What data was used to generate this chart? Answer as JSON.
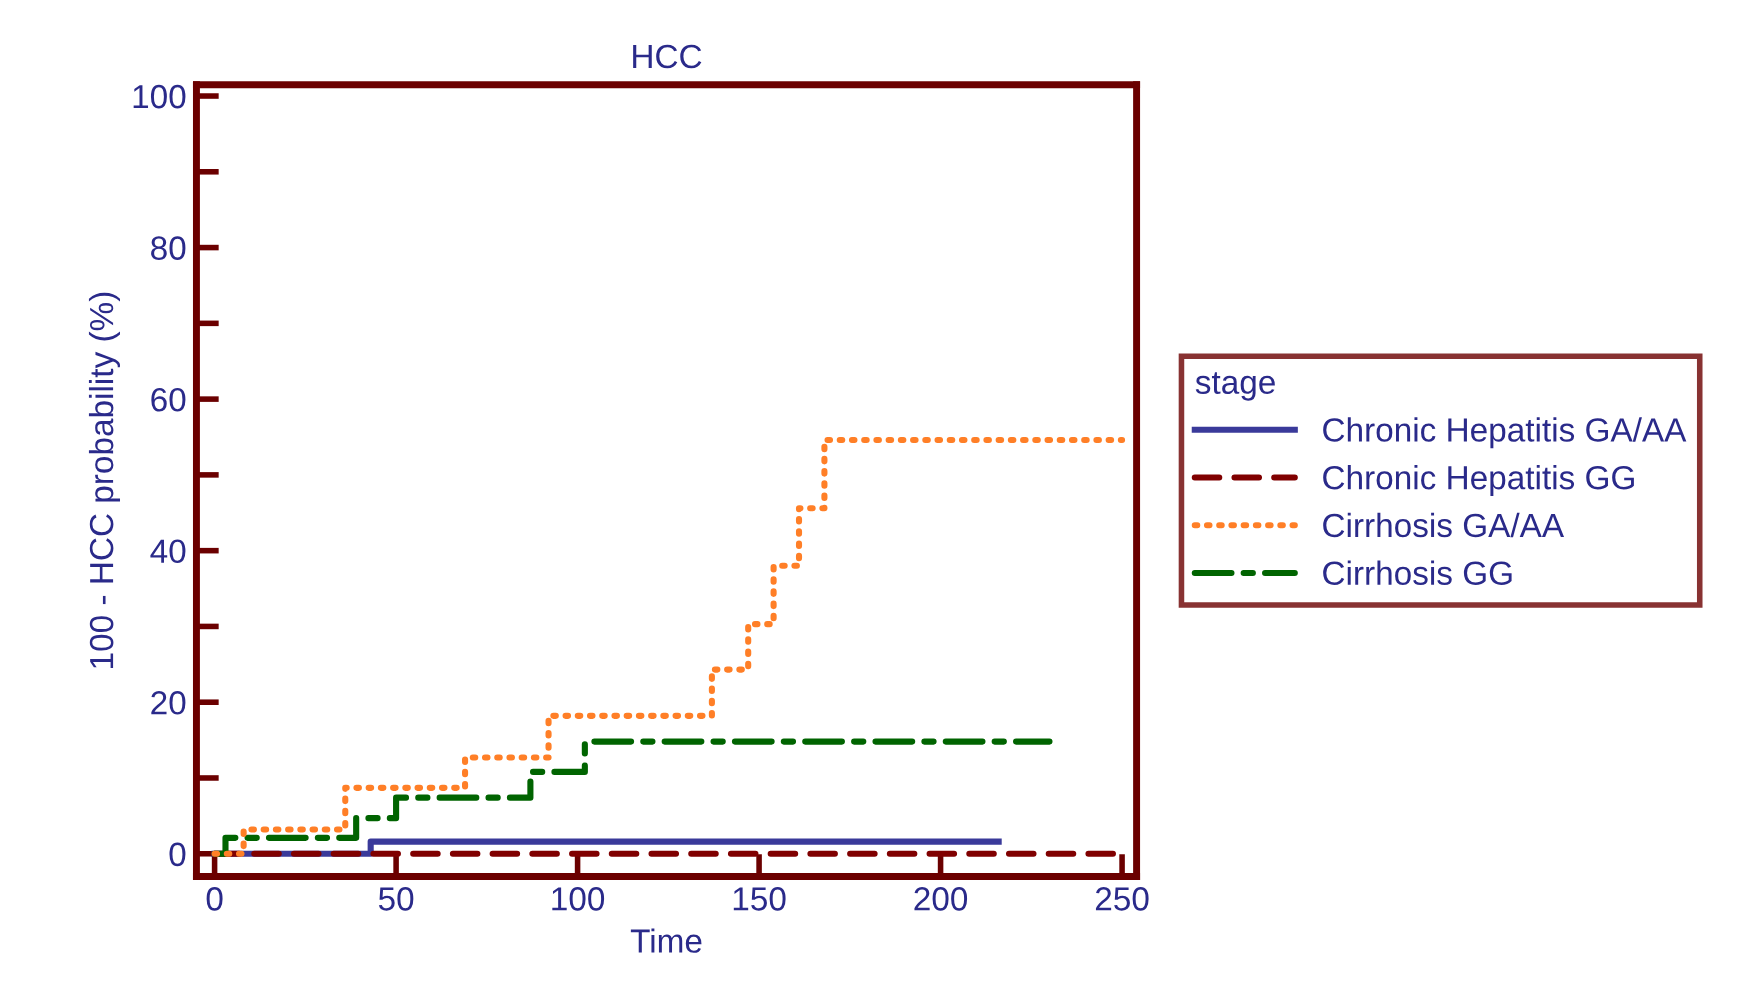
{
  "chart_data": {
    "type": "step",
    "title": "HCC",
    "xlabel": "Time",
    "ylabel": "100 - HCC probability (%)",
    "legend_title": "stage",
    "xlim": [
      -5,
      254
    ],
    "ylim": [
      -3,
      101.5
    ],
    "xticks": [
      0,
      50,
      100,
      150,
      200,
      250
    ],
    "yticks": [
      0,
      {
        "value": 10,
        "label": null
      },
      20,
      {
        "value": 30,
        "label": null
      },
      40,
      {
        "value": 50,
        "label": null
      },
      60,
      {
        "value": 70,
        "label": null
      },
      80,
      {
        "value": 90,
        "label": null
      },
      100
    ],
    "grid": false,
    "legend": "right",
    "series": [
      {
        "name": "Chronic Hepatitis GA/AA",
        "color": "#3a3a9a",
        "line_style": "solid",
        "x": [
          0,
          43,
          216
        ],
        "values": [
          0,
          1.6,
          1.6
        ]
      },
      {
        "name": "Chronic Hepatitis GG",
        "color": "#800000",
        "line_style": "dashed",
        "x": [
          0,
          250
        ],
        "values": [
          0,
          0
        ]
      },
      {
        "name": "Cirrhosis GA/AA",
        "color": "#ff7f27",
        "line_style": "dotted",
        "x": [
          0,
          8,
          36,
          69,
          92,
          137,
          147,
          154,
          161,
          168,
          250
        ],
        "values": [
          0,
          3.2,
          8.7,
          12.7,
          18.2,
          24.3,
          30.3,
          38,
          45.6,
          54.6,
          54.6
        ]
      },
      {
        "name": "Cirrhosis GG",
        "color": "#006400",
        "line_style": "dashdot",
        "x": [
          0,
          3,
          39,
          50,
          87,
          102,
          230
        ],
        "values": [
          0,
          2.1,
          4.7,
          7.4,
          10.8,
          14.8,
          14.8
        ]
      }
    ]
  }
}
